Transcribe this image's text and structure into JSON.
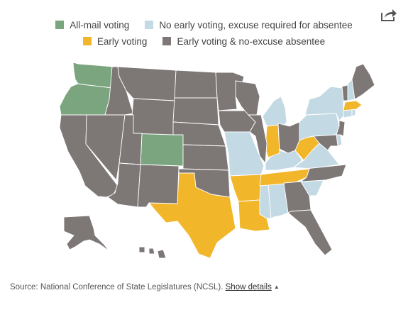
{
  "colors": {
    "all_mail": "#7aa57f",
    "no_early_excuse": "#c3d9e4",
    "early": "#f2b62a",
    "early_no_excuse": "#7d7776"
  },
  "legend": {
    "row1": [
      {
        "label": "All-mail voting",
        "category": "all_mail"
      },
      {
        "label": "No early voting, excuse required for absentee",
        "category": "no_early_excuse"
      }
    ],
    "row2": [
      {
        "label": "Early voting",
        "category": "early"
      },
      {
        "label": "Early voting & no-excuse absentee",
        "category": "early_no_excuse"
      }
    ]
  },
  "share": {
    "icon": "share-icon"
  },
  "states": [
    {
      "code": "WA",
      "category": "all_mail"
    },
    {
      "code": "OR",
      "category": "all_mail"
    },
    {
      "code": "CO",
      "category": "all_mail"
    },
    {
      "code": "MO",
      "category": "no_early_excuse"
    },
    {
      "code": "MS",
      "category": "no_early_excuse"
    },
    {
      "code": "AL",
      "category": "no_early_excuse"
    },
    {
      "code": "SC",
      "category": "no_early_excuse"
    },
    {
      "code": "KY",
      "category": "no_early_excuse"
    },
    {
      "code": "VA",
      "category": "no_early_excuse"
    },
    {
      "code": "PA",
      "category": "no_early_excuse"
    },
    {
      "code": "NY",
      "category": "no_early_excuse"
    },
    {
      "code": "MI",
      "category": "no_early_excuse"
    },
    {
      "code": "NH",
      "category": "no_early_excuse"
    },
    {
      "code": "CT",
      "category": "no_early_excuse"
    },
    {
      "code": "RI",
      "category": "no_early_excuse"
    },
    {
      "code": "DE",
      "category": "no_early_excuse"
    },
    {
      "code": "TX",
      "category": "early"
    },
    {
      "code": "AR",
      "category": "early"
    },
    {
      "code": "LA",
      "category": "early"
    },
    {
      "code": "TN",
      "category": "early"
    },
    {
      "code": "IN",
      "category": "early"
    },
    {
      "code": "WV",
      "category": "early"
    },
    {
      "code": "MA",
      "category": "early"
    },
    {
      "code": "CA",
      "category": "early_no_excuse"
    },
    {
      "code": "NV",
      "category": "early_no_excuse"
    },
    {
      "code": "ID",
      "category": "early_no_excuse"
    },
    {
      "code": "MT",
      "category": "early_no_excuse"
    },
    {
      "code": "WY",
      "category": "early_no_excuse"
    },
    {
      "code": "UT",
      "category": "early_no_excuse"
    },
    {
      "code": "AZ",
      "category": "early_no_excuse"
    },
    {
      "code": "NM",
      "category": "early_no_excuse"
    },
    {
      "code": "ND",
      "category": "early_no_excuse"
    },
    {
      "code": "SD",
      "category": "early_no_excuse"
    },
    {
      "code": "NE",
      "category": "early_no_excuse"
    },
    {
      "code": "KS",
      "category": "early_no_excuse"
    },
    {
      "code": "OK",
      "category": "early_no_excuse"
    },
    {
      "code": "MN",
      "category": "early_no_excuse"
    },
    {
      "code": "IA",
      "category": "early_no_excuse"
    },
    {
      "code": "WI",
      "category": "early_no_excuse"
    },
    {
      "code": "IL",
      "category": "early_no_excuse"
    },
    {
      "code": "OH",
      "category": "early_no_excuse"
    },
    {
      "code": "GA",
      "category": "early_no_excuse"
    },
    {
      "code": "FL",
      "category": "early_no_excuse"
    },
    {
      "code": "NC",
      "category": "early_no_excuse"
    },
    {
      "code": "MD",
      "category": "early_no_excuse"
    },
    {
      "code": "NJ",
      "category": "early_no_excuse"
    },
    {
      "code": "VT",
      "category": "early_no_excuse"
    },
    {
      "code": "ME",
      "category": "early_no_excuse"
    },
    {
      "code": "AK",
      "category": "early_no_excuse"
    },
    {
      "code": "HI",
      "category": "early_no_excuse"
    }
  ],
  "source": {
    "text": "Source: National Conference of State Legislatures (NCSL).",
    "link": "Show details",
    "caret": "▲"
  }
}
